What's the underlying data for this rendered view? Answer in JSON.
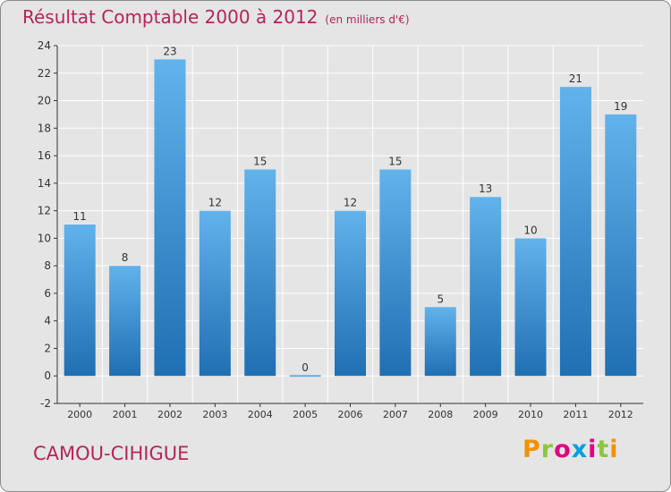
{
  "header": {
    "title": "Résultat Comptable 2000 à 2012",
    "subtitle": "(en milliers d'€)"
  },
  "footer": {
    "commune": "CAMOU-CIHIGUE",
    "logo_text": "Proxiti",
    "logo_colors": [
      "#f39200",
      "#8cc63f",
      "#e5007e",
      "#009fe3",
      "#e5007e",
      "#8cc63f",
      "#f39200"
    ]
  },
  "colors": {
    "bar_light": "#62b2ec",
    "bar_dark": "#1f6fb3",
    "title": "#b5245a",
    "background": "#e5e5e5"
  },
  "chart_data": {
    "type": "bar",
    "title": "Résultat Comptable 2000 à 2012",
    "subtitle": "(en milliers d'€)",
    "categories": [
      "2000",
      "2001",
      "2002",
      "2003",
      "2004",
      "2005",
      "2006",
      "2007",
      "2008",
      "2009",
      "2010",
      "2011",
      "2012"
    ],
    "values": [
      11,
      8,
      23,
      12,
      15,
      0,
      12,
      15,
      5,
      13,
      10,
      21,
      19
    ],
    "ylim": [
      -2,
      24
    ],
    "yticks": [
      -2,
      0,
      2,
      4,
      6,
      8,
      10,
      12,
      14,
      16,
      18,
      20,
      22,
      24
    ],
    "grid": true,
    "legend": "none"
  }
}
